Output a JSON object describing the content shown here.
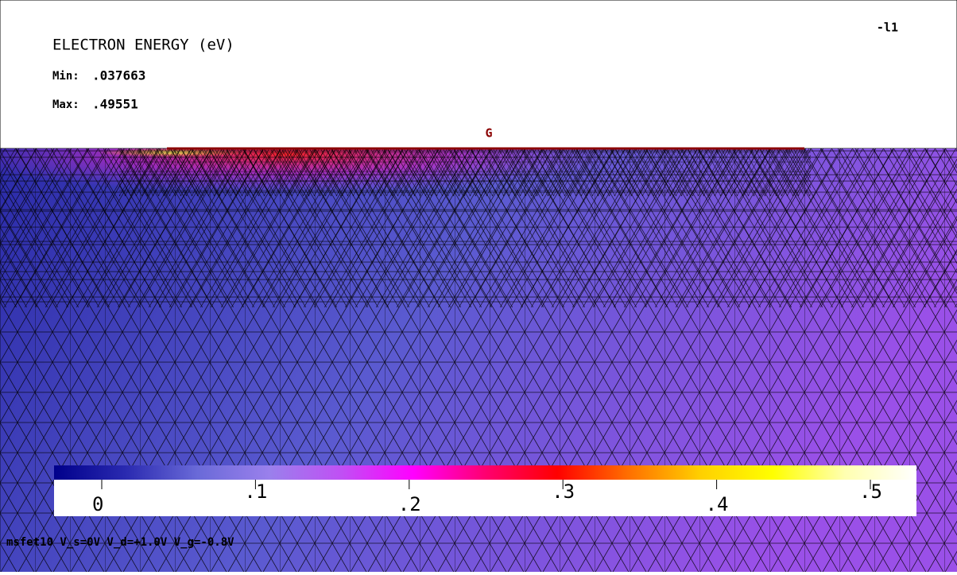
{
  "header": {
    "title": "ELECTRON ENERGY (eV)",
    "min_label": "Min:",
    "min_value": ".037663",
    "max_label": "Max:",
    "max_value": ".49551",
    "corner_label": "-l1"
  },
  "gate_label": "G",
  "colorbar": {
    "range": [
      0,
      0.5
    ],
    "ticks": [
      0,
      {
        "value": 0.1,
        "label": ".1"
      },
      {
        "value": 0.2,
        "label": ".2"
      },
      {
        "value": 0.3,
        "label": ".3"
      },
      {
        "value": 0.4,
        "label": ".4"
      },
      {
        "value": 0.5,
        "label": ".5"
      }
    ],
    "colors": [
      "#00008b",
      "#2a2ab0",
      "#6a6ad8",
      "#9a80ec",
      "#c050f4",
      "#ff00ff",
      "#ff0070",
      "#ff0000",
      "#ff7000",
      "#ffd000",
      "#ffff00",
      "#ffffb0",
      "#ffffff"
    ]
  },
  "footer": "msfet10 V_s=0V V_d=+1.0V V_g=-0.8V"
}
